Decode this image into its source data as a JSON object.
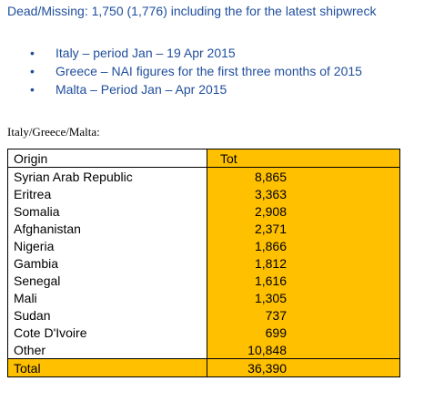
{
  "header": {
    "title": "Dead/Missing:  1,750 (1,776) including the for the latest shipwreck"
  },
  "bullets": [
    "Italy – period Jan – 19 Apr 2015",
    "Greece – NAI figures for the first three months of 2015",
    "Malta – Period Jan – Apr 2015"
  ],
  "caption": "Italy/Greece/Malta:",
  "table": {
    "columns": [
      "Origin",
      "Tot"
    ],
    "rows": [
      [
        "Syrian Arab Republic",
        "8,865"
      ],
      [
        "Eritrea",
        "3,363"
      ],
      [
        "Somalia",
        "2,908"
      ],
      [
        "Afghanistan",
        "2,371"
      ],
      [
        "Nigeria",
        "1,866"
      ],
      [
        "Gambia",
        "1,812"
      ],
      [
        "Senegal",
        "1,616"
      ],
      [
        "Mali",
        "1,305"
      ],
      [
        "Sudan",
        "737"
      ],
      [
        "Cote D'Ivoire",
        "699"
      ],
      [
        "Other",
        "10,848"
      ]
    ],
    "total": [
      "Total",
      "36,390"
    ]
  }
}
